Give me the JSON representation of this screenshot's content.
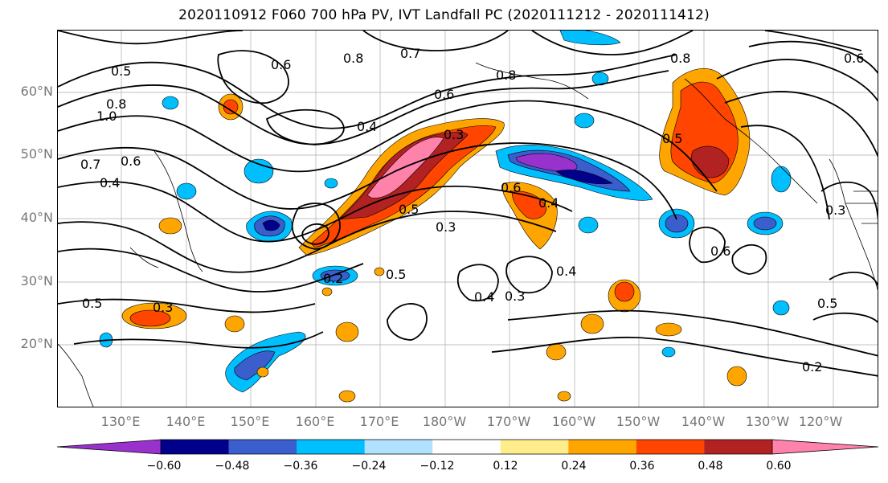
{
  "title": "2020110912 F060 700 hPa PV, IVT Landfall PC (2020111212 - 2020111412)",
  "lat_labels": [
    "60°N",
    "50°N",
    "40°N",
    "30°N",
    "20°N"
  ],
  "lon_labels": [
    "130°E",
    "140°E",
    "150°E",
    "160°E",
    "170°E",
    "180°W",
    "170°W",
    "160°W",
    "150°W",
    "140°W",
    "130°W",
    "120°W"
  ],
  "colorbar": {
    "tick_labels": [
      "−0.60",
      "−0.48",
      "−0.36",
      "−0.24",
      "−0.12",
      "0.12",
      "0.24",
      "0.36",
      "0.48",
      "0.60"
    ],
    "colors": [
      "#9932CC",
      "#00008B",
      "#3A5FCD",
      "#00BFFF",
      "#B0E2FF",
      "#FFFFFF",
      "#FFEC8B",
      "#FFA500",
      "#FF4500",
      "#B22222",
      "#FF82AB"
    ]
  },
  "contour_labels": [
    {
      "text": "0.5",
      "name": "pv-label-0-5"
    },
    {
      "text": "0.8",
      "name": "pv-label-0-8"
    },
    {
      "text": "1.0",
      "name": "pv-label-1-0"
    },
    {
      "text": "0.7",
      "name": "pv-label-0-7"
    },
    {
      "text": "0.6",
      "name": "pv-label-0-6"
    },
    {
      "text": "0.4",
      "name": "pv-label-0-4"
    },
    {
      "text": "0.3",
      "name": "pv-label-0-3"
    },
    {
      "text": "0.2",
      "name": "pv-label-0-2"
    }
  ]
}
